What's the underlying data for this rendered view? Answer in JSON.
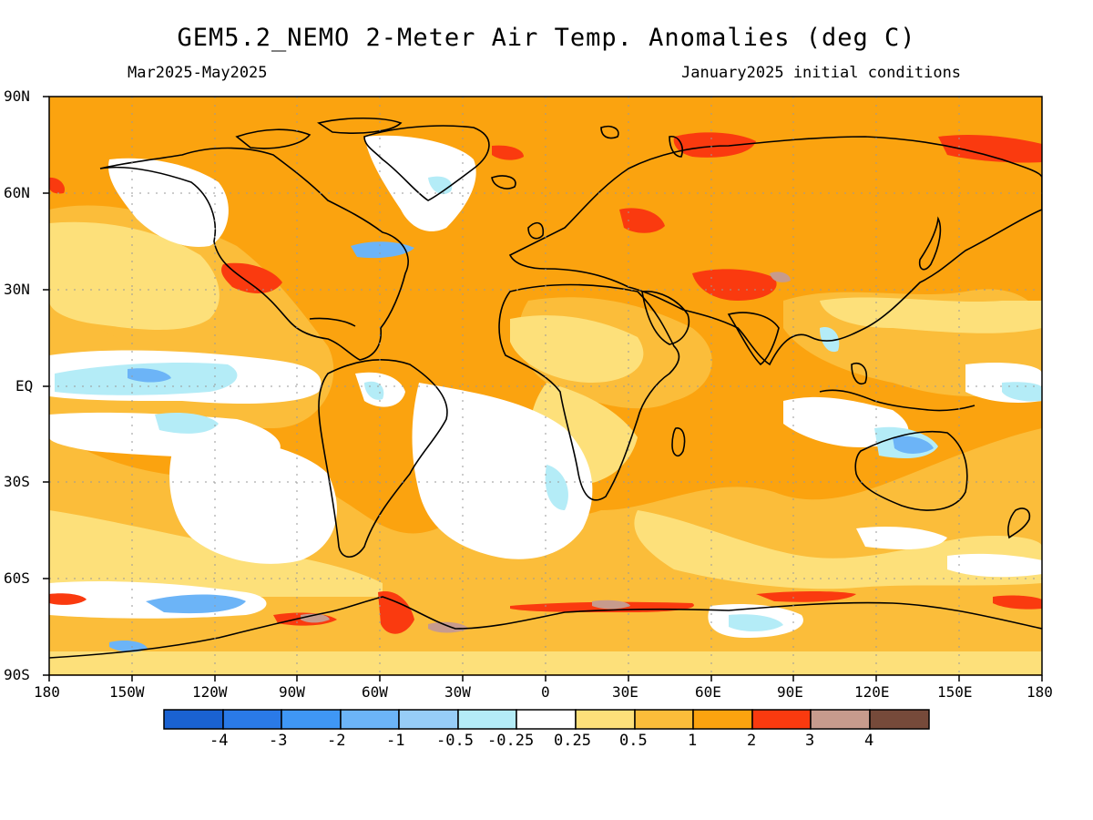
{
  "title": "GEM5.2_NEMO 2-Meter Air Temp. Anomalies (deg C)",
  "subtitle_left": "Mar2025-May2025",
  "subtitle_right": "January2025 initial conditions",
  "map": {
    "projection": "equirectangular",
    "lon_range": [
      -180,
      180
    ],
    "lat_range": [
      -90,
      90
    ],
    "grid": "dotted",
    "background_class": "1 to 2"
  },
  "lat_labels": [
    "90N",
    "60N",
    "30N",
    "EQ",
    "30S",
    "60S",
    "90S"
  ],
  "lon_labels": [
    "180",
    "150W",
    "120W",
    "90W",
    "60W",
    "30W",
    "0",
    "30E",
    "60E",
    "90E",
    "120E",
    "150E",
    "180"
  ],
  "colorbar": {
    "colors": [
      "#1a62d2",
      "#2a7ae8",
      "#3f97f5",
      "#6cb4f7",
      "#97cdf7",
      "#b4ecf7",
      "#ffffff",
      "#fde07a",
      "#fbbd3a",
      "#fba30f",
      "#fa3a0f",
      "#c79b8d",
      "#764a3a"
    ],
    "labels": [
      "-4",
      "-3",
      "-2",
      "-1",
      "-0.5",
      "-0.25",
      "0.25",
      "0.5",
      "1",
      "2",
      "3",
      "4"
    ]
  }
}
